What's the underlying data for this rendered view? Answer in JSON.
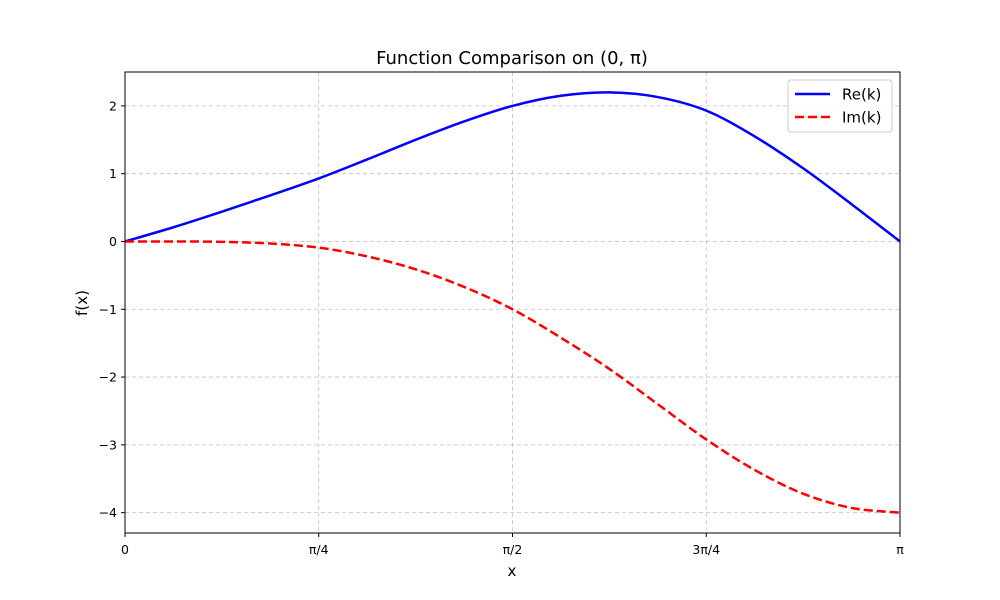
{
  "chart_data": {
    "type": "line",
    "title": "Function Comparison on (0, π)",
    "xlabel": "x",
    "ylabel": "f(x)",
    "xlim": [
      0,
      3.141592653589793
    ],
    "ylim": [
      -4.3,
      2.5
    ],
    "grid": true,
    "legend_position": "top-right",
    "x_ticks": [
      {
        "value": 0,
        "label": "0"
      },
      {
        "value": 0.7853981633974483,
        "label": "π/4"
      },
      {
        "value": 1.5707963267948966,
        "label": "π/2"
      },
      {
        "value": 2.356194490192345,
        "label": "3π/4"
      },
      {
        "value": 3.141592653589793,
        "label": "π"
      }
    ],
    "y_ticks": [
      {
        "value": 2,
        "label": "2"
      },
      {
        "value": 1,
        "label": "1"
      },
      {
        "value": 0,
        "label": "0"
      },
      {
        "value": -1,
        "label": "−1"
      },
      {
        "value": -2,
        "label": "−2"
      },
      {
        "value": -3,
        "label": "−3"
      },
      {
        "value": -4,
        "label": "−4"
      }
    ],
    "x": [
      0,
      0.19635,
      0.392699,
      0.589049,
      0.785398,
      0.981748,
      1.178097,
      1.374447,
      1.570796,
      1.767146,
      1.963495,
      2.159845,
      2.356194,
      2.552544,
      2.748894,
      2.945243,
      3.141593
    ],
    "series": [
      {
        "name": "Re(k)",
        "color": "#0000ff",
        "style": "solid",
        "values": [
          0,
          0.21,
          0.44,
          0.68,
          0.93,
          1.21,
          1.5,
          1.77,
          2.0,
          2.15,
          2.2,
          2.13,
          1.93,
          1.55,
          1.08,
          0.55,
          0
        ]
      },
      {
        "name": "Im(k)",
        "color": "#ff0000",
        "style": "dashed",
        "values": [
          0,
          0,
          -0.005,
          -0.03,
          -0.09,
          -0.22,
          -0.41,
          -0.67,
          -1.0,
          -1.42,
          -1.88,
          -2.4,
          -2.92,
          -3.37,
          -3.72,
          -3.93,
          -4.0
        ]
      }
    ]
  }
}
